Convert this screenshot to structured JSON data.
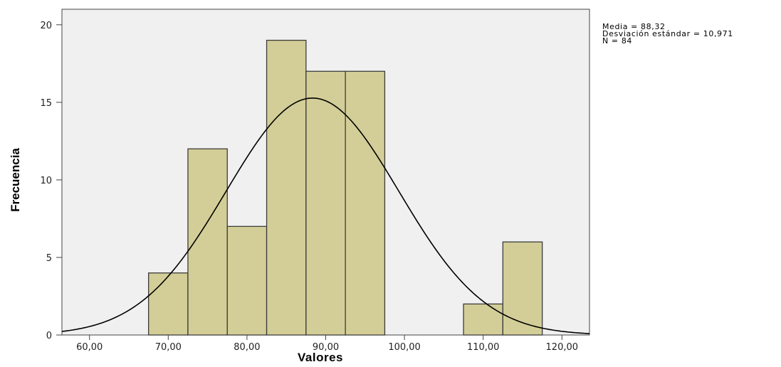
{
  "chart_data": {
    "type": "bar",
    "bins": [
      {
        "from": 67.5,
        "to": 72.5,
        "value": 4
      },
      {
        "from": 72.5,
        "to": 77.5,
        "value": 12
      },
      {
        "from": 77.5,
        "to": 82.5,
        "value": 7
      },
      {
        "from": 82.5,
        "to": 87.5,
        "value": 19
      },
      {
        "from": 87.5,
        "to": 92.5,
        "value": 17
      },
      {
        "from": 92.5,
        "to": 97.5,
        "value": 17
      },
      {
        "from": 107.5,
        "to": 112.5,
        "value": 2
      },
      {
        "from": 112.5,
        "to": 117.5,
        "value": 6
      }
    ],
    "xlabel": "Valores",
    "ylabel": "Frecuencia",
    "x_ticks": [
      "60,00",
      "70,00",
      "80,00",
      "90,00",
      "100,00",
      "110,00",
      "120,00"
    ],
    "x_tick_values": [
      60,
      70,
      80,
      90,
      100,
      110,
      120
    ],
    "y_ticks": [
      "0",
      "5",
      "10",
      "15",
      "20"
    ],
    "y_tick_values": [
      0,
      5,
      10,
      15,
      20
    ],
    "xlim": [
      56.5,
      123.5
    ],
    "ylim": [
      0,
      21
    ],
    "normal_curve": {
      "mean": 88.32,
      "sd": 10.971,
      "n": 84,
      "bin_width": 5
    },
    "stats": [
      "Media = 88,32",
      "Desviación estándar = 10,971",
      "N = 84"
    ],
    "colors": {
      "plot_bg": "#f0f0f0",
      "bar_fill": "#d3ce97",
      "bar_stroke": "#3c3c3c",
      "curve": "#000000"
    },
    "grid": false,
    "legend": "none"
  }
}
